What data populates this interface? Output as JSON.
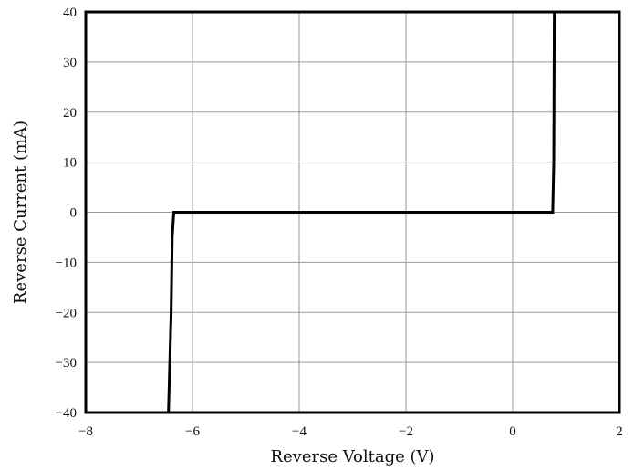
{
  "chart_data": {
    "type": "line",
    "title": "",
    "xlabel": "Reverse Voltage (V)",
    "ylabel": "Reverse Current (mA)",
    "xlim": [
      -8,
      2
    ],
    "ylim": [
      -40,
      40
    ],
    "grid": true,
    "x_ticks": [
      -8,
      -6,
      -4,
      -2,
      0,
      2
    ],
    "y_ticks": [
      -40,
      -30,
      -20,
      -10,
      0,
      10,
      20,
      30,
      40
    ],
    "x_tick_labels": [
      "−8",
      "−6",
      "−4",
      "−2",
      "0",
      "2"
    ],
    "y_tick_labels": [
      "−40",
      "−30",
      "−20",
      "−10",
      "0",
      "10",
      "20",
      "30",
      "40"
    ],
    "series": [
      {
        "color": "#000000",
        "x": [
          -6.45,
          -6.4,
          -6.38,
          -6.35,
          -2.0,
          0.75,
          0.77,
          0.78
        ],
        "y": [
          -40,
          -20,
          -5,
          0,
          0,
          0,
          10,
          40
        ]
      }
    ]
  },
  "colors": {
    "frame": "#000000",
    "grid": "#9a9a9a",
    "line": "#000000",
    "background": "#ffffff"
  }
}
